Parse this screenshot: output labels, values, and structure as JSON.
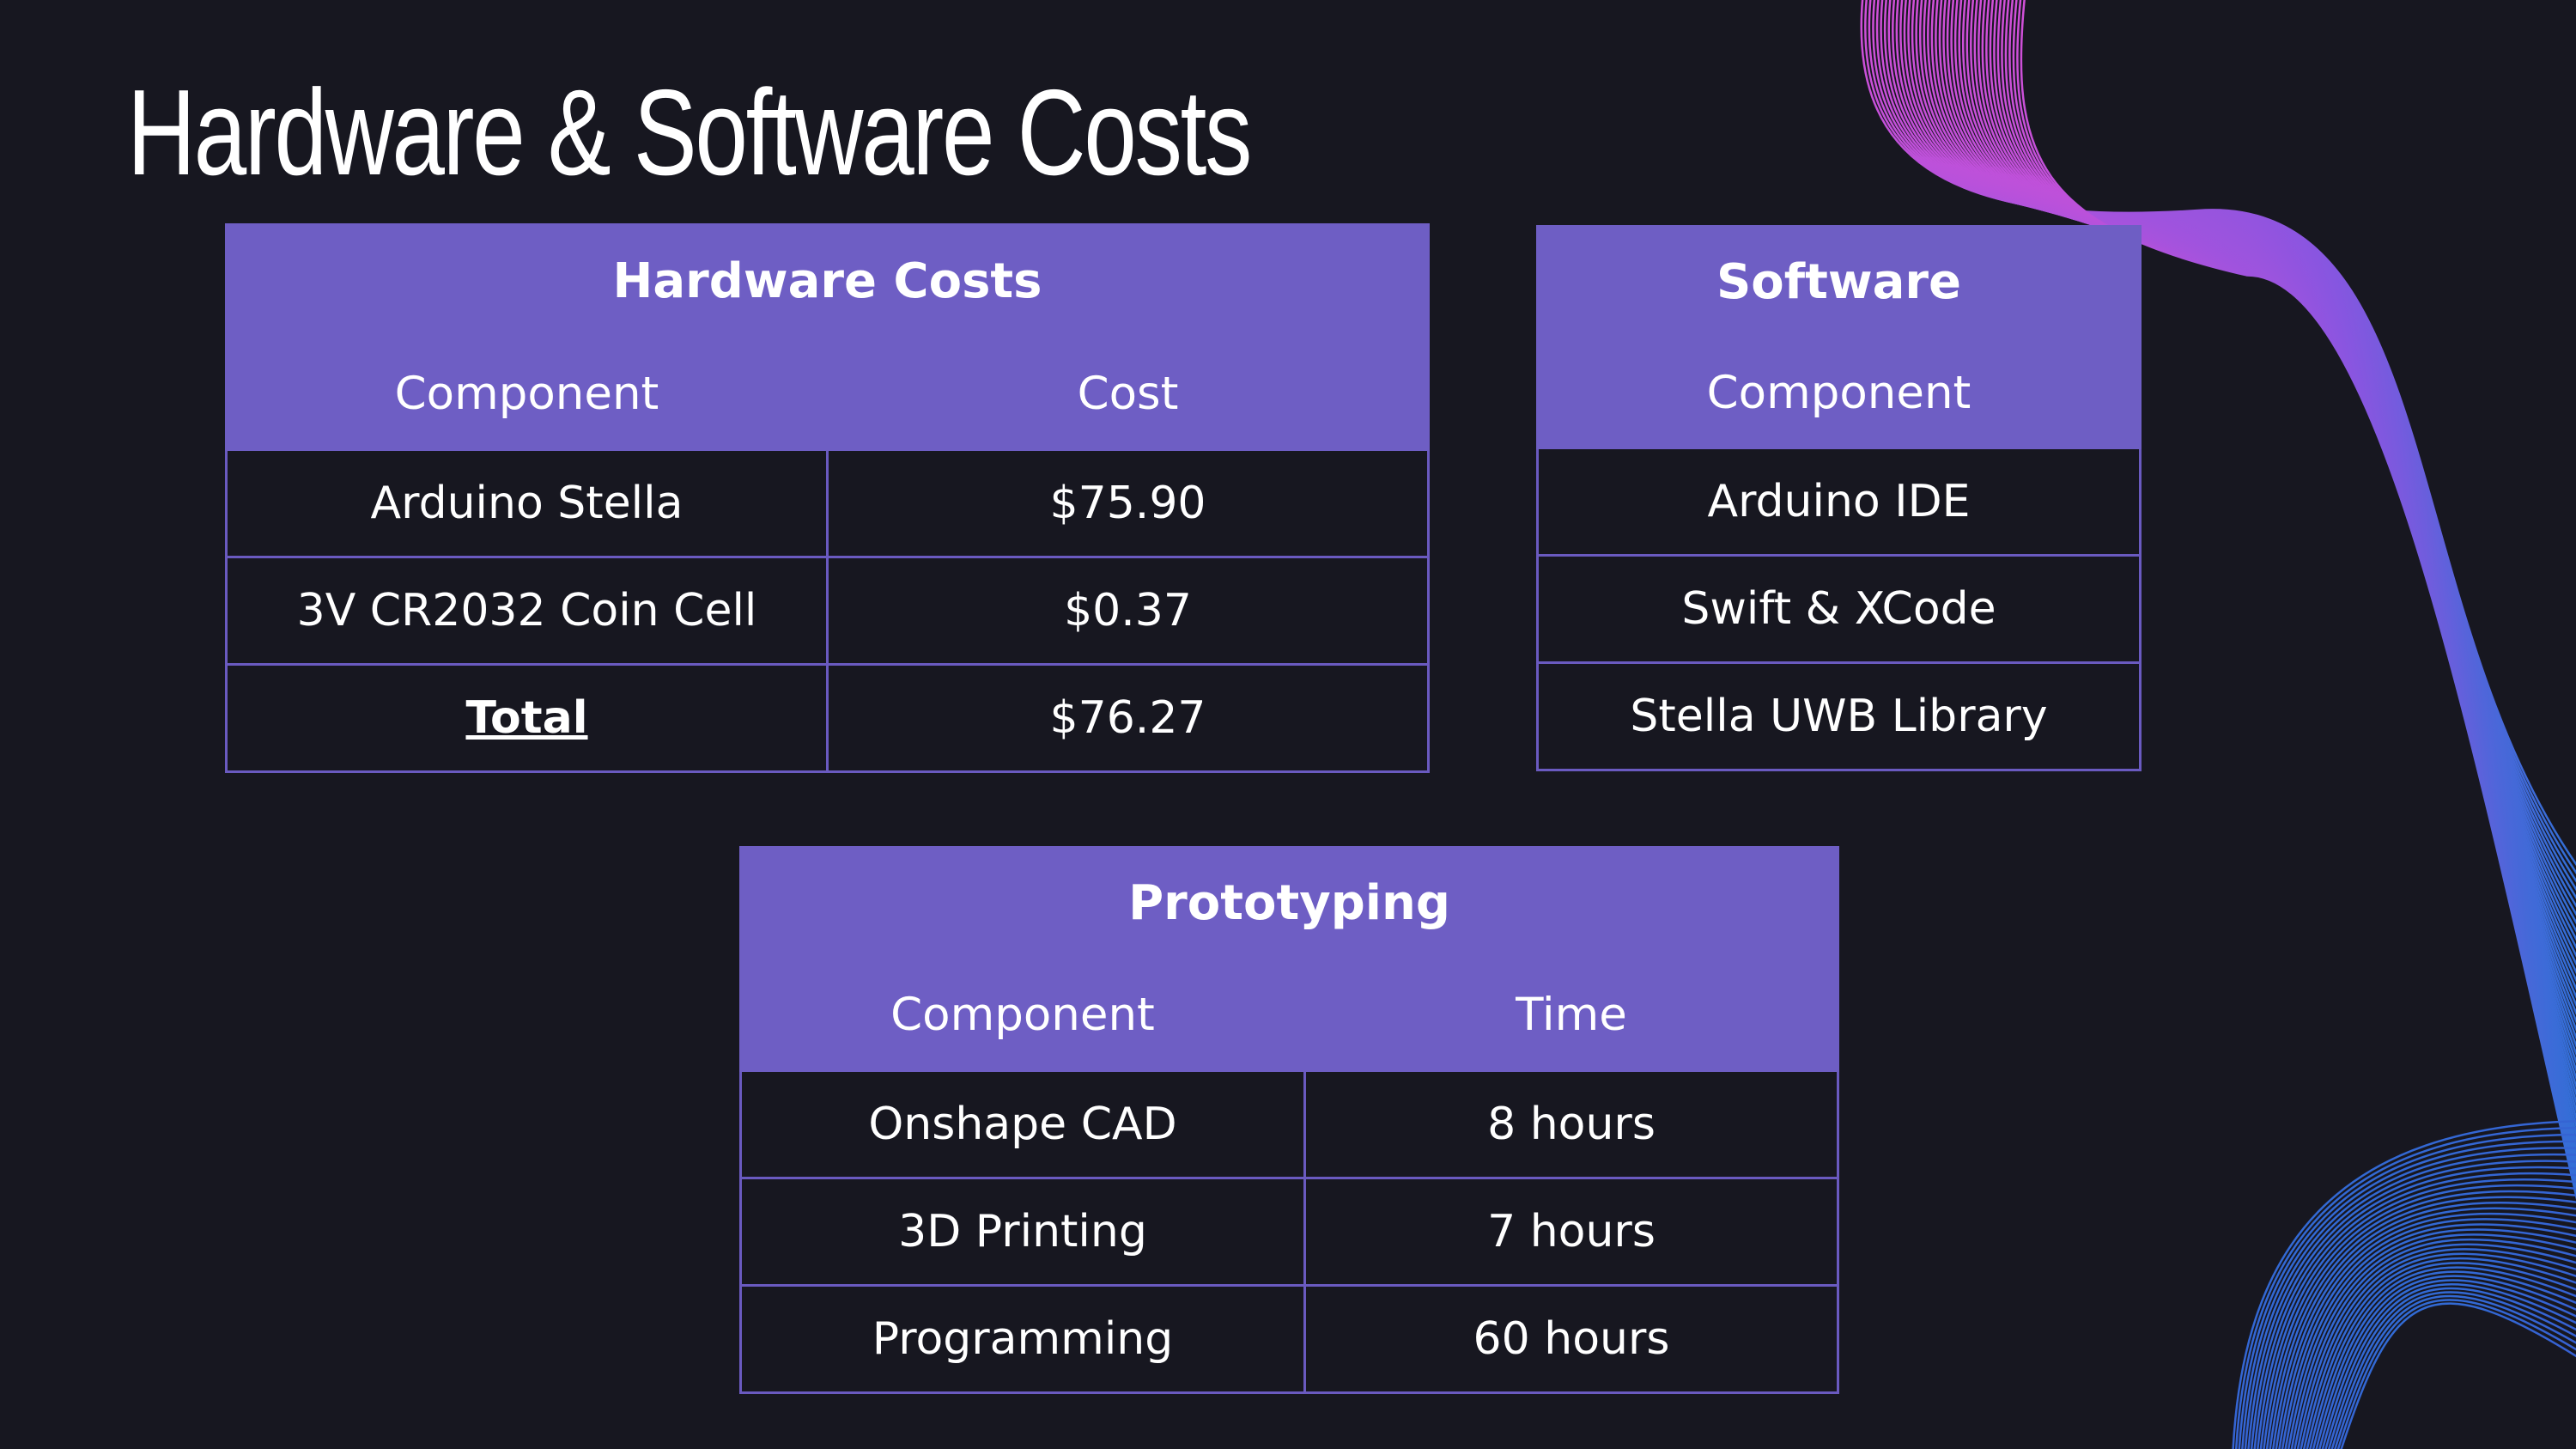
{
  "slide": {
    "title": "Hardware & Software Costs"
  },
  "hardware": {
    "caption": "Hardware Costs",
    "headers": [
      "Component",
      "Cost"
    ],
    "rows": [
      [
        "Arduino Stella",
        "$75.90"
      ],
      [
        "3V CR2032 Coin Cell",
        "$0.37"
      ],
      [
        "Total",
        "$76.27"
      ]
    ]
  },
  "software": {
    "caption": "Software",
    "headers": [
      "Component"
    ],
    "rows": [
      [
        "Arduino IDE"
      ],
      [
        "Swift & XCode"
      ],
      [
        "Stella UWB Library"
      ]
    ]
  },
  "prototyping": {
    "caption": "Prototyping",
    "headers": [
      "Component",
      "Time"
    ],
    "rows": [
      [
        "Onshape CAD",
        "8 hours"
      ],
      [
        "3D Printing",
        "7 hours"
      ],
      [
        "Programming",
        "60 hours"
      ]
    ]
  },
  "colors": {
    "background": "#171720",
    "header_fill": "#6e5ec4",
    "border": "#6a5ac0",
    "wave_pink": "#c44ee0",
    "wave_blue": "#2f6fd6"
  }
}
